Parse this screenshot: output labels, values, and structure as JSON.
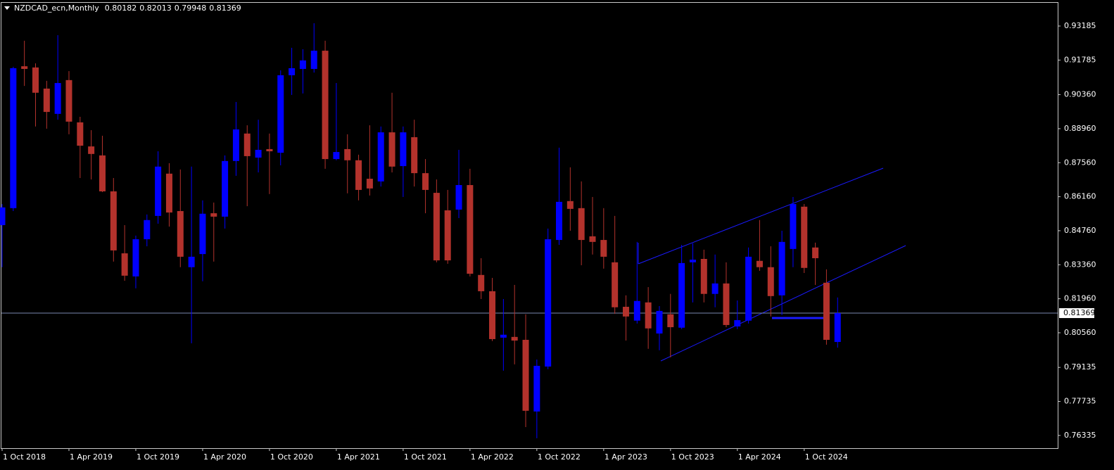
{
  "chart_data": {
    "type": "candlestick",
    "title": "NZDCAD_ecn,Monthly",
    "categories": [
      "1 Oct 2018",
      null,
      null,
      null,
      null,
      null,
      "1 Apr 2019",
      null,
      null,
      null,
      null,
      null,
      "1 Oct 2019",
      null,
      null,
      null,
      null,
      null,
      "1 Apr 2020",
      null,
      null,
      null,
      null,
      null,
      "1 Oct 2020",
      null,
      null,
      null,
      null,
      null,
      "1 Apr 2021",
      null,
      null,
      null,
      null,
      null,
      "1 Oct 2021",
      null,
      null,
      null,
      null,
      null,
      "1 Apr 2022",
      null,
      null,
      null,
      null,
      null,
      "1 Oct 2022",
      null,
      null,
      null,
      null,
      null,
      "1 Apr 2023",
      null,
      null,
      null,
      null,
      null,
      "1 Oct 2023",
      null,
      null,
      null,
      null,
      null,
      "1 Apr 2024",
      null,
      null,
      null,
      null,
      null,
      "1 Oct 2024",
      null,
      null,
      null
    ],
    "open": [
      0.8499,
      0.8569,
      0.9153,
      0.9148,
      0.9061,
      0.8957,
      0.9096,
      0.8922,
      0.8823,
      0.8786,
      0.8638,
      0.8383,
      0.8288,
      0.8441,
      0.8537,
      0.8711,
      0.8557,
      0.8326,
      0.838,
      0.8548,
      0.8534,
      0.8763,
      0.8876,
      0.8777,
      0.8812,
      0.8797,
      0.9116,
      0.9142,
      0.9142,
      0.9217,
      0.8771,
      0.8812,
      0.8766,
      0.869,
      0.8679,
      0.8881,
      0.8742,
      0.8861,
      0.8713,
      0.8632,
      0.856,
      0.8563,
      0.8664,
      0.8294,
      0.8227,
      0.8036,
      0.8039,
      0.8027,
      0.7732,
      0.7917,
      0.8438,
      0.8598,
      0.8569,
      0.8453,
      0.8438,
      0.8346,
      0.8163,
      0.8106,
      0.8181,
      0.8053,
      0.8132,
      0.8077,
      0.8346,
      0.836,
      0.8216,
      0.8259,
      0.8082,
      0.8106,
      0.8352,
      0.8326,
      0.821,
      0.8401,
      0.8575,
      0.8407,
      0.8262,
      0.80182
    ],
    "high": [
      0.8586,
      0.9151,
      0.9258,
      0.9165,
      0.9093,
      0.9281,
      0.9133,
      0.8945,
      0.889,
      0.8867,
      0.8693,
      0.8499,
      0.8456,
      0.8543,
      0.8803,
      0.8754,
      0.8728,
      0.874,
      0.8601,
      0.8592,
      0.8786,
      0.9006,
      0.891,
      0.8933,
      0.8876,
      0.9136,
      0.9229,
      0.9223,
      0.933,
      0.9258,
      0.9084,
      0.8873,
      0.8789,
      0.891,
      0.8905,
      0.9044,
      0.8905,
      0.8933,
      0.8771,
      0.8687,
      0.8644,
      0.8809,
      0.8731,
      0.8363,
      0.8282,
      0.8195,
      0.8253,
      0.8132,
      0.7946,
      0.8485,
      0.8818,
      0.8737,
      0.8679,
      0.8615,
      0.8569,
      0.8537,
      0.821,
      0.843,
      0.8244,
      0.8166,
      0.8216,
      0.8418,
      0.8424,
      0.8398,
      0.8378,
      0.8346,
      0.8189,
      0.8407,
      0.852,
      0.8412,
      0.8476,
      0.8615,
      0.8586,
      0.8427,
      0.8317,
      0.82013
    ],
    "low": [
      0.8326,
      0.8557,
      0.9072,
      0.8905,
      0.8896,
      0.8933,
      0.8873,
      0.8693,
      0.8687,
      0.8635,
      0.8349,
      0.827,
      0.8239,
      0.8412,
      0.8505,
      0.8493,
      0.8326,
      0.8013,
      0.8268,
      0.8349,
      0.8485,
      0.8702,
      0.8577,
      0.8716,
      0.8627,
      0.8745,
      0.9035,
      0.9041,
      0.9127,
      0.8731,
      0.8766,
      0.863,
      0.8601,
      0.8621,
      0.8658,
      0.8716,
      0.8615,
      0.8658,
      0.8548,
      0.8346,
      0.834,
      0.8528,
      0.8288,
      0.8195,
      0.8022,
      0.79,
      0.7926,
      0.7668,
      0.7622,
      0.7906,
      0.8418,
      0.8476,
      0.8334,
      0.8378,
      0.832,
      0.8134,
      0.8024,
      0.8094,
      0.799,
      0.7984,
      0.7955,
      0.8071,
      0.8181,
      0.8181,
      0.8161,
      0.8079,
      0.8071,
      0.8094,
      0.8311,
      0.8123,
      0.8129,
      0.8326,
      0.8302,
      0.8253,
      0.8007,
      0.79948
    ],
    "close": [
      0.8572,
      0.9145,
      0.9142,
      0.9044,
      0.8965,
      0.9084,
      0.8925,
      0.8826,
      0.8792,
      0.8638,
      0.8395,
      0.8291,
      0.8441,
      0.852,
      0.874,
      0.8551,
      0.8369,
      0.8369,
      0.8546,
      0.8534,
      0.8763,
      0.8893,
      0.8783,
      0.8809,
      0.8803,
      0.9116,
      0.9145,
      0.9177,
      0.9217,
      0.8771,
      0.88,
      0.8766,
      0.8644,
      0.865,
      0.8881,
      0.874,
      0.8881,
      0.8713,
      0.8644,
      0.8354,
      0.8354,
      0.8664,
      0.8299,
      0.8227,
      0.803,
      0.8048,
      0.8024,
      0.7735,
      0.792,
      0.8441,
      0.8595,
      0.8566,
      0.8438,
      0.843,
      0.8369,
      0.8161,
      0.8123,
      0.8187,
      0.8074,
      0.8146,
      0.8079,
      0.8343,
      0.8357,
      0.8216,
      0.8259,
      0.8088,
      0.8108,
      0.8369,
      0.8326,
      0.8207,
      0.843,
      0.8586,
      0.8323,
      0.8363,
      0.8027,
      0.81369
    ],
    "up_color": "#0000ff",
    "down_color": "#b3322c",
    "ylim": [
      0.7581,
      0.9417
    ],
    "yticks": [
      0.93185,
      0.91785,
      {
        "value": 0.9036,
        "label": "0.90360"
      },
      {
        "value": 0.8896,
        "label": "0.88960"
      },
      {
        "value": 0.8756,
        "label": "0.87560"
      },
      {
        "value": 0.8616,
        "label": "0.86160"
      },
      {
        "value": 0.8476,
        "label": "0.84760"
      },
      {
        "value": 0.8336,
        "label": "0.83360"
      },
      {
        "value": 0.8196,
        "label": "0.81960"
      },
      {
        "value": 0.8056,
        "label": "0.80560"
      },
      0.79135,
      0.77735,
      0.76335
    ]
  }
}
